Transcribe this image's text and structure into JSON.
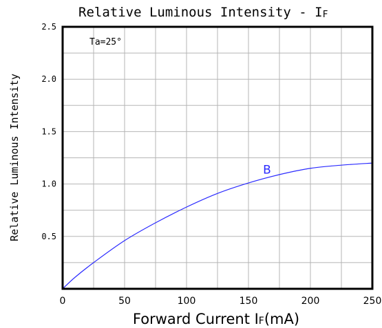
{
  "chart_data": {
    "type": "line",
    "title": "Relative Luminous Intensity - I",
    "title_subscript": "F",
    "xlabel": "Forward Current I",
    "xlabel_subscript": "F",
    "xlabel_unit": "(mA)",
    "ylabel": "Relative Luminous Intensity",
    "xlim": [
      0,
      250
    ],
    "ylim": [
      0,
      2.5
    ],
    "x_ticks": [
      0,
      50,
      100,
      150,
      200,
      250
    ],
    "x_tick_labels": [
      "0",
      "50",
      "100",
      "150",
      "200",
      "250"
    ],
    "y_ticks": [
      0.5,
      1.0,
      1.5,
      2.0,
      2.5
    ],
    "y_tick_labels": [
      "0.5",
      "1.0",
      "1.5",
      "2.0",
      "2.5"
    ],
    "x_grid_step": 25,
    "y_grid_step": 0.25,
    "grid": true,
    "annotation": "Ta=25°",
    "series": [
      {
        "name": "B",
        "color": "#2a2aff",
        "x": [
          0,
          10,
          25,
          50,
          75,
          100,
          125,
          150,
          175,
          200,
          225,
          250
        ],
        "y": [
          0,
          0.11,
          0.25,
          0.46,
          0.63,
          0.78,
          0.91,
          1.01,
          1.09,
          1.15,
          1.18,
          1.2
        ],
        "label_at": [
          165,
          1.1
        ]
      }
    ]
  }
}
